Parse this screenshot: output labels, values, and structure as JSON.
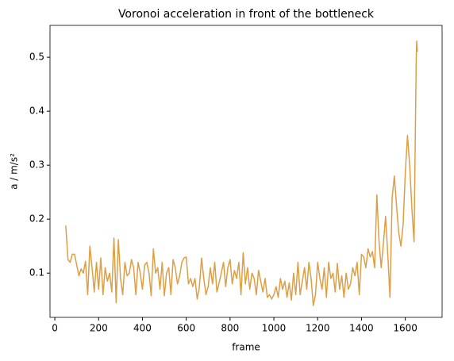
{
  "chart_data": {
    "type": "line",
    "title": "Voronoi acceleration in front of the bottleneck",
    "x_label": "frame",
    "y_label": "a / m/s²",
    "x": [
      50,
      60,
      70,
      80,
      90,
      100,
      110,
      120,
      130,
      140,
      150,
      160,
      170,
      180,
      190,
      200,
      210,
      220,
      230,
      240,
      250,
      260,
      270,
      280,
      290,
      300,
      310,
      320,
      330,
      340,
      350,
      360,
      370,
      380,
      390,
      400,
      410,
      420,
      430,
      440,
      450,
      460,
      470,
      480,
      490,
      500,
      510,
      520,
      530,
      540,
      550,
      560,
      570,
      580,
      590,
      600,
      610,
      620,
      630,
      640,
      650,
      660,
      670,
      680,
      690,
      700,
      710,
      720,
      730,
      740,
      750,
      760,
      770,
      780,
      790,
      800,
      810,
      820,
      830,
      840,
      850,
      860,
      870,
      880,
      890,
      900,
      910,
      920,
      930,
      940,
      950,
      960,
      970,
      980,
      990,
      1000,
      1010,
      1020,
      1030,
      1040,
      1050,
      1060,
      1070,
      1080,
      1090,
      1100,
      1110,
      1120,
      1130,
      1140,
      1150,
      1160,
      1170,
      1180,
      1190,
      1200,
      1210,
      1220,
      1230,
      1240,
      1250,
      1260,
      1270,
      1280,
      1290,
      1300,
      1310,
      1320,
      1330,
      1340,
      1350,
      1360,
      1370,
      1380,
      1390,
      1400,
      1410,
      1420,
      1430,
      1440,
      1450,
      1460,
      1470,
      1480,
      1490,
      1500,
      1510,
      1520,
      1530,
      1540,
      1550,
      1560,
      1570,
      1580,
      1590,
      1600,
      1610,
      1620,
      1630,
      1640,
      1650,
      1652,
      1655
    ],
    "series": [
      {
        "color": "#dd9f45",
        "values": [
          0.188,
          0.125,
          0.12,
          0.135,
          0.135,
          0.115,
          0.095,
          0.108,
          0.1,
          0.122,
          0.06,
          0.15,
          0.11,
          0.065,
          0.12,
          0.07,
          0.128,
          0.06,
          0.11,
          0.085,
          0.1,
          0.065,
          0.165,
          0.045,
          0.162,
          0.09,
          0.06,
          0.12,
          0.095,
          0.1,
          0.125,
          0.11,
          0.06,
          0.12,
          0.1,
          0.07,
          0.115,
          0.12,
          0.1,
          0.058,
          0.145,
          0.1,
          0.11,
          0.07,
          0.12,
          0.058,
          0.1,
          0.11,
          0.06,
          0.125,
          0.11,
          0.08,
          0.095,
          0.12,
          0.128,
          0.13,
          0.08,
          0.09,
          0.075,
          0.09,
          0.052,
          0.075,
          0.128,
          0.09,
          0.06,
          0.075,
          0.11,
          0.08,
          0.12,
          0.065,
          0.082,
          0.1,
          0.12,
          0.075,
          0.11,
          0.125,
          0.08,
          0.105,
          0.09,
          0.12,
          0.06,
          0.138,
          0.08,
          0.11,
          0.07,
          0.1,
          0.09,
          0.06,
          0.105,
          0.085,
          0.065,
          0.09,
          0.055,
          0.06,
          0.052,
          0.06,
          0.075,
          0.055,
          0.09,
          0.07,
          0.085,
          0.055,
          0.082,
          0.05,
          0.1,
          0.06,
          0.12,
          0.06,
          0.085,
          0.11,
          0.07,
          0.12,
          0.09,
          0.04,
          0.06,
          0.12,
          0.09,
          0.07,
          0.11,
          0.055,
          0.12,
          0.09,
          0.1,
          0.065,
          0.118,
          0.07,
          0.095,
          0.055,
          0.1,
          0.07,
          0.08,
          0.11,
          0.095,
          0.12,
          0.06,
          0.135,
          0.13,
          0.11,
          0.145,
          0.13,
          0.14,
          0.11,
          0.245,
          0.16,
          0.11,
          0.155,
          0.205,
          0.135,
          0.055,
          0.24,
          0.28,
          0.225,
          0.175,
          0.15,
          0.19,
          0.285,
          0.355,
          0.3,
          0.22,
          0.158,
          0.5,
          0.53,
          0.51
        ]
      }
    ],
    "xlim": [
      -22,
      1768
    ],
    "ylim": [
      0.018,
      0.559
    ],
    "xticks": [
      0,
      200,
      400,
      600,
      800,
      1000,
      1200,
      1400,
      1600
    ],
    "yticks": [
      0.1,
      0.2,
      0.3,
      0.4,
      0.5
    ]
  }
}
